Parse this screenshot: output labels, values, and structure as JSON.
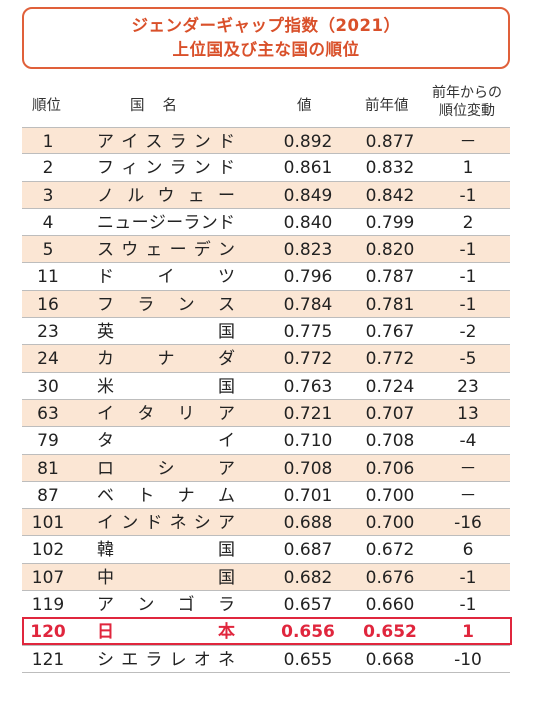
{
  "title": {
    "line1": "ジェンダーギャップ指数（2021）",
    "line2": "上位国及び主な国の順位"
  },
  "columns": {
    "rank": "順位",
    "name": "国名",
    "value": "値",
    "prev": "前年値",
    "change_line1": "前年からの",
    "change_line2": "順位変動"
  },
  "rows": [
    {
      "rank": "1",
      "name": "アイスランド",
      "value": "0.892",
      "prev": "0.877",
      "change": "－"
    },
    {
      "rank": "2",
      "name": "フィンランド",
      "value": "0.861",
      "prev": "0.832",
      "change": "1"
    },
    {
      "rank": "3",
      "name": "ノルウェー",
      "value": "0.849",
      "prev": "0.842",
      "change": "-1"
    },
    {
      "rank": "4",
      "name": "ニュージーランド",
      "value": "0.840",
      "prev": "0.799",
      "change": "2"
    },
    {
      "rank": "5",
      "name": "スウェーデン",
      "value": "0.823",
      "prev": "0.820",
      "change": "-1"
    },
    {
      "rank": "11",
      "name": "ドイツ",
      "value": "0.796",
      "prev": "0.787",
      "change": "-1"
    },
    {
      "rank": "16",
      "name": "フランス",
      "value": "0.784",
      "prev": "0.781",
      "change": "-1"
    },
    {
      "rank": "23",
      "name": "英国",
      "value": "0.775",
      "prev": "0.767",
      "change": "-2"
    },
    {
      "rank": "24",
      "name": "カナダ",
      "value": "0.772",
      "prev": "0.772",
      "change": "-5"
    },
    {
      "rank": "30",
      "name": "米国",
      "value": "0.763",
      "prev": "0.724",
      "change": "23"
    },
    {
      "rank": "63",
      "name": "イタリア",
      "value": "0.721",
      "prev": "0.707",
      "change": "13"
    },
    {
      "rank": "79",
      "name": "タイ",
      "value": "0.710",
      "prev": "0.708",
      "change": "-4"
    },
    {
      "rank": "81",
      "name": "ロシア",
      "value": "0.708",
      "prev": "0.706",
      "change": "－"
    },
    {
      "rank": "87",
      "name": "ベトナム",
      "value": "0.701",
      "prev": "0.700",
      "change": "－"
    },
    {
      "rank": "101",
      "name": "インドネシア",
      "value": "0.688",
      "prev": "0.700",
      "change": "-16"
    },
    {
      "rank": "102",
      "name": "韓国",
      "value": "0.687",
      "prev": "0.672",
      "change": "6"
    },
    {
      "rank": "107",
      "name": "中国",
      "value": "0.682",
      "prev": "0.676",
      "change": "-1"
    },
    {
      "rank": "119",
      "name": "アンゴラ",
      "value": "0.657",
      "prev": "0.660",
      "change": "-1"
    },
    {
      "rank": "120",
      "name": "日本",
      "value": "0.656",
      "prev": "0.652",
      "change": "1",
      "highlight": true
    },
    {
      "rank": "121",
      "name": "シエラレオネ",
      "value": "0.655",
      "prev": "0.668",
      "change": "-10"
    }
  ],
  "colors": {
    "title": "#d9502a",
    "shade": "#fbe6d4",
    "highlight": "#e0263d"
  }
}
